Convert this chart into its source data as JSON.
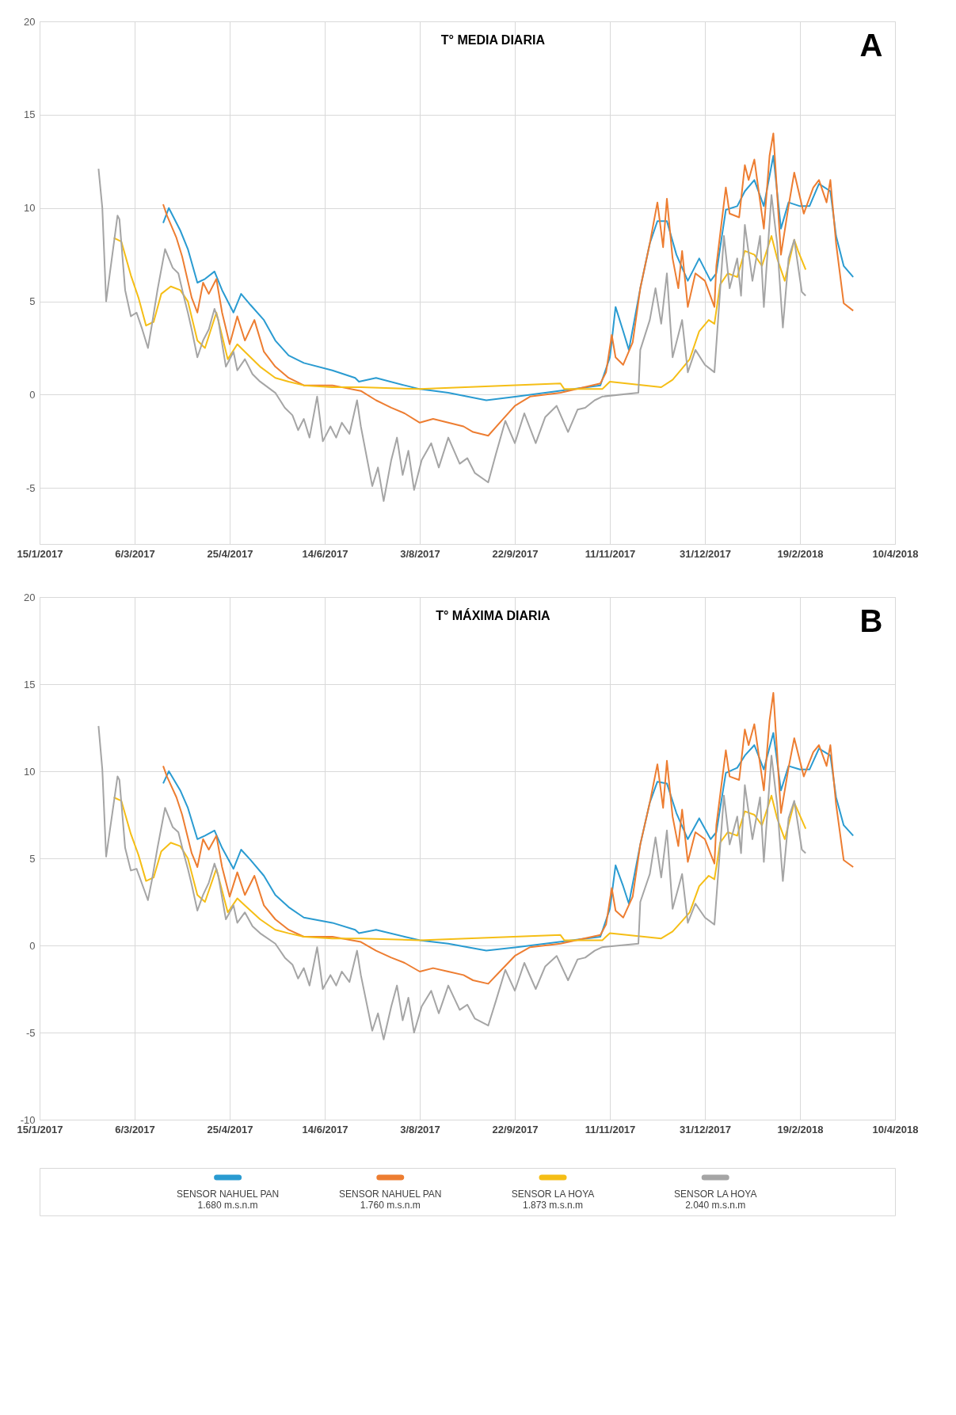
{
  "chart_data": [
    {
      "type": "line",
      "title": "T° MEDIA DIARIA",
      "annotations": [
        "A"
      ],
      "grid": true,
      "line_style": "solid",
      "xlim": [
        "2017-01-15",
        "2018-04-10"
      ],
      "xticks": [
        {
          "value": "2017-01-15",
          "label": "15/1/2017"
        },
        {
          "value": "2017-03-06",
          "label": "6/3/2017"
        },
        {
          "value": "2017-04-25",
          "label": "25/4/2017"
        },
        {
          "value": "2017-06-14",
          "label": "14/6/2017"
        },
        {
          "value": "2017-08-03",
          "label": "3/8/2017"
        },
        {
          "value": "2017-09-22",
          "label": "22/9/2017"
        },
        {
          "value": "2017-11-11",
          "label": "11/11/2017"
        },
        {
          "value": "2017-12-31",
          "label": "31/12/2017"
        },
        {
          "value": "2018-02-19",
          "label": "19/2/2018"
        },
        {
          "value": "2018-04-10",
          "label": "10/4/2018"
        }
      ],
      "ylim": [
        -8,
        20
      ],
      "yticks": [
        -5,
        0,
        5,
        10,
        15,
        20
      ],
      "series": [
        {
          "color": "#2a9bd1",
          "x": [
            "2017-03-21",
            "2017-03-24",
            "2017-03-30",
            "2017-04-03",
            "2017-04-08",
            "2017-04-12",
            "2017-04-17",
            "2017-04-21",
            "2017-04-27",
            "2017-05-01",
            "2017-05-06",
            "2017-05-13",
            "2017-05-19",
            "2017-05-26",
            "2017-06-03",
            "2017-06-18",
            "2017-06-30",
            "2017-07-02",
            "2017-07-11",
            "2017-07-26",
            "2017-08-03",
            "2017-08-18",
            "2017-09-07",
            "2017-09-23",
            "2017-10-08",
            "2017-11-06",
            "2017-11-11",
            "2017-11-14",
            "2017-11-18",
            "2017-11-21",
            "2017-11-27",
            "2017-12-02",
            "2017-12-06",
            "2017-12-11",
            "2017-12-16",
            "2017-12-22",
            "2017-12-28",
            "2018-01-03",
            "2018-01-06",
            "2018-01-11",
            "2018-01-17",
            "2018-01-21",
            "2018-01-26",
            "2018-01-31",
            "2018-02-05",
            "2018-02-09",
            "2018-02-13",
            "2018-02-19",
            "2018-02-24",
            "2018-03-01",
            "2018-03-07",
            "2018-03-10",
            "2018-03-14",
            "2018-03-19"
          ],
          "values": [
            9.2,
            10.0,
            8.8,
            7.8,
            6.0,
            6.2,
            6.6,
            5.6,
            4.4,
            5.4,
            4.8,
            4.0,
            2.9,
            2.1,
            1.7,
            1.3,
            0.9,
            0.7,
            0.9,
            0.5,
            0.3,
            0.1,
            -0.3,
            -0.1,
            0.1,
            0.5,
            2.0,
            4.7,
            3.4,
            2.4,
            5.7,
            8.1,
            9.3,
            9.3,
            7.5,
            6.1,
            7.3,
            6.1,
            6.5,
            9.9,
            10.1,
            10.9,
            11.5,
            10.1,
            12.8,
            8.9,
            10.3,
            10.1,
            10.1,
            11.3,
            10.9,
            8.5,
            6.9,
            6.3
          ]
        },
        {
          "color": "#ed7d31",
          "x": [
            "2017-03-21",
            "2017-03-23",
            "2017-03-28",
            "2017-03-31",
            "2017-04-05",
            "2017-04-08",
            "2017-04-11",
            "2017-04-14",
            "2017-04-18",
            "2017-04-21",
            "2017-04-25",
            "2017-04-29",
            "2017-05-03",
            "2017-05-08",
            "2017-05-13",
            "2017-05-19",
            "2017-05-26",
            "2017-06-03",
            "2017-06-18",
            "2017-07-03",
            "2017-07-11",
            "2017-07-19",
            "2017-07-26",
            "2017-08-03",
            "2017-08-10",
            "2017-08-18",
            "2017-08-26",
            "2017-08-31",
            "2017-09-08",
            "2017-09-15",
            "2017-09-22",
            "2017-09-30",
            "2017-10-16",
            "2017-11-06",
            "2017-11-09",
            "2017-11-12",
            "2017-11-14",
            "2017-11-18",
            "2017-11-23",
            "2017-11-27",
            "2017-12-02",
            "2017-12-06",
            "2017-12-09",
            "2017-12-11",
            "2017-12-14",
            "2017-12-17",
            "2017-12-19",
            "2017-12-22",
            "2017-12-26",
            "2017-12-31",
            "2018-01-05",
            "2018-01-06",
            "2018-01-11",
            "2018-01-13",
            "2018-01-18",
            "2018-01-21",
            "2018-01-23",
            "2018-01-26",
            "2018-01-31",
            "2018-02-03",
            "2018-02-05",
            "2018-02-09",
            "2018-02-13",
            "2018-02-16",
            "2018-02-21",
            "2018-02-26",
            "2018-03-01",
            "2018-03-05",
            "2018-03-07",
            "2018-03-10",
            "2018-03-14",
            "2018-03-19"
          ],
          "values": [
            10.2,
            9.6,
            8.4,
            7.4,
            5.2,
            4.4,
            6.0,
            5.4,
            6.2,
            4.4,
            2.7,
            4.2,
            2.9,
            4.0,
            2.3,
            1.5,
            0.9,
            0.5,
            0.5,
            0.2,
            -0.3,
            -0.7,
            -1.0,
            -1.5,
            -1.3,
            -1.5,
            -1.7,
            -2.0,
            -2.2,
            -1.4,
            -0.6,
            -0.1,
            0.1,
            0.6,
            1.2,
            3.2,
            2.0,
            1.6,
            2.8,
            5.7,
            8.1,
            10.3,
            7.9,
            10.5,
            7.3,
            5.7,
            7.7,
            4.7,
            6.5,
            6.1,
            4.7,
            6.9,
            11.1,
            9.7,
            9.5,
            12.3,
            11.5,
            12.6,
            8.9,
            12.8,
            14.0,
            7.5,
            10.1,
            11.9,
            9.7,
            11.1,
            11.5,
            10.3,
            11.5,
            8.1,
            4.9,
            4.5
          ]
        },
        {
          "color": "#f5be16",
          "x": [
            "2017-02-23",
            "2017-02-27",
            "2017-03-04",
            "2017-03-08",
            "2017-03-12",
            "2017-03-16",
            "2017-03-20",
            "2017-03-25",
            "2017-03-30",
            "2017-04-03",
            "2017-04-08",
            "2017-04-12",
            "2017-04-18",
            "2017-04-24",
            "2017-04-29",
            "2017-05-03",
            "2017-05-11",
            "2017-05-19",
            "2017-05-26",
            "2017-06-03",
            "2017-06-18",
            "2017-07-03",
            "2017-08-03",
            "2017-10-16",
            "2017-10-18",
            "2017-11-07",
            "2017-11-11",
            "2017-12-08",
            "2017-12-14",
            "2017-12-19",
            "2017-12-23",
            "2017-12-28",
            "2018-01-02",
            "2018-01-05",
            "2018-01-08",
            "2018-01-12",
            "2018-01-17",
            "2018-01-21",
            "2018-01-26",
            "2018-01-30",
            "2018-02-04",
            "2018-02-07",
            "2018-02-11",
            "2018-02-16",
            "2018-02-18",
            "2018-02-22"
          ],
          "values": [
            8.4,
            8.2,
            6.4,
            5.2,
            3.7,
            3.9,
            5.4,
            5.8,
            5.6,
            5.0,
            2.9,
            2.5,
            4.4,
            1.9,
            2.7,
            2.3,
            1.5,
            0.9,
            0.7,
            0.5,
            0.4,
            0.4,
            0.3,
            0.6,
            0.3,
            0.3,
            0.7,
            0.4,
            0.8,
            1.4,
            1.9,
            3.4,
            4.0,
            3.8,
            5.9,
            6.5,
            6.3,
            7.7,
            7.5,
            6.9,
            8.5,
            7.3,
            6.1,
            8.3,
            7.7,
            6.7
          ]
        },
        {
          "color": "#a5a5a5",
          "x": [
            "2017-02-15",
            "2017-02-17",
            "2017-02-19",
            "2017-02-25",
            "2017-02-26",
            "2017-03-01",
            "2017-03-04",
            "2017-03-07",
            "2017-03-10",
            "2017-03-13",
            "2017-03-15",
            "2017-03-18",
            "2017-03-22",
            "2017-03-26",
            "2017-03-29",
            "2017-04-01",
            "2017-04-03",
            "2017-04-05",
            "2017-04-08",
            "2017-04-11",
            "2017-04-14",
            "2017-04-17",
            "2017-04-19",
            "2017-04-23",
            "2017-04-27",
            "2017-04-29",
            "2017-05-03",
            "2017-05-07",
            "2017-05-11",
            "2017-05-19",
            "2017-05-24",
            "2017-05-28",
            "2017-05-31",
            "2017-06-03",
            "2017-06-06",
            "2017-06-10",
            "2017-06-13",
            "2017-06-17",
            "2017-06-20",
            "2017-06-23",
            "2017-06-27",
            "2017-07-01",
            "2017-07-03",
            "2017-07-09",
            "2017-07-12",
            "2017-07-15",
            "2017-07-19",
            "2017-07-22",
            "2017-07-25",
            "2017-07-28",
            "2017-07-31",
            "2017-08-04",
            "2017-08-09",
            "2017-08-13",
            "2017-08-18",
            "2017-08-24",
            "2017-08-28",
            "2017-09-01",
            "2017-09-08",
            "2017-09-12",
            "2017-09-17",
            "2017-09-22",
            "2017-09-27",
            "2017-10-03",
            "2017-10-08",
            "2017-10-14",
            "2017-10-20",
            "2017-10-25",
            "2017-10-29",
            "2017-11-03",
            "2017-11-07",
            "2017-11-26",
            "2017-11-27",
            "2017-12-02",
            "2017-12-05",
            "2017-12-08",
            "2017-12-11",
            "2017-12-14",
            "2017-12-19",
            "2017-12-22",
            "2017-12-26",
            "2017-12-31",
            "2018-01-05",
            "2018-01-10",
            "2018-01-13",
            "2018-01-17",
            "2018-01-19",
            "2018-01-21",
            "2018-01-25",
            "2018-01-29",
            "2018-01-31",
            "2018-02-04",
            "2018-02-07",
            "2018-02-10",
            "2018-02-13",
            "2018-02-16",
            "2018-02-20",
            "2018-02-22"
          ],
          "values": [
            12.1,
            10.0,
            5.0,
            9.6,
            9.4,
            5.6,
            4.2,
            4.4,
            3.5,
            2.5,
            3.7,
            5.6,
            7.8,
            6.8,
            6.5,
            5.2,
            4.4,
            3.5,
            2.0,
            2.9,
            3.5,
            4.6,
            4.0,
            1.5,
            2.3,
            1.3,
            1.9,
            1.1,
            0.7,
            0.1,
            -0.7,
            -1.1,
            -1.9,
            -1.3,
            -2.3,
            -0.1,
            -2.5,
            -1.7,
            -2.3,
            -1.5,
            -2.1,
            -0.3,
            -1.7,
            -4.9,
            -3.9,
            -5.7,
            -3.5,
            -2.3,
            -4.3,
            -3.0,
            -5.1,
            -3.5,
            -2.6,
            -3.9,
            -2.3,
            -3.7,
            -3.4,
            -4.2,
            -4.7,
            -3.2,
            -1.4,
            -2.6,
            -1.0,
            -2.6,
            -1.2,
            -0.6,
            -2.0,
            -0.8,
            -0.7,
            -0.3,
            -0.1,
            0.1,
            2.4,
            4.0,
            5.7,
            3.8,
            6.5,
            2.0,
            4.0,
            1.2,
            2.4,
            1.6,
            1.2,
            8.5,
            5.7,
            7.3,
            5.3,
            9.1,
            6.1,
            8.5,
            4.7,
            10.7,
            8.1,
            3.6,
            7.3,
            8.3,
            5.5,
            5.3
          ]
        }
      ]
    },
    {
      "type": "line",
      "title": "T° MÁXIMA DIARIA",
      "annotations": [
        "B"
      ],
      "legend": "bottom",
      "grid": true,
      "line_style": "solid",
      "xlim": [
        "2017-01-15",
        "2018-04-10"
      ],
      "xticks": [
        {
          "value": "2017-01-15",
          "label": "15/1/2017"
        },
        {
          "value": "2017-03-06",
          "label": "6/3/2017"
        },
        {
          "value": "2017-04-25",
          "label": "25/4/2017"
        },
        {
          "value": "2017-06-14",
          "label": "14/6/2017"
        },
        {
          "value": "2017-08-03",
          "label": "3/8/2017"
        },
        {
          "value": "2017-09-22",
          "label": "22/9/2017"
        },
        {
          "value": "2017-11-11",
          "label": "11/11/2017"
        },
        {
          "value": "2017-12-31",
          "label": "31/12/2017"
        },
        {
          "value": "2018-02-19",
          "label": "19/2/2018"
        },
        {
          "value": "2018-04-10",
          "label": "10/4/2018"
        }
      ],
      "ylim": [
        -10,
        20
      ],
      "yticks": [
        -10,
        -5,
        0,
        5,
        10,
        15,
        20
      ],
      "series": [
        {
          "name": "SENSOR NAHUEL PAN\n1.680 m.s.n.m",
          "color": "#2a9bd1",
          "x": [
            "2017-03-21",
            "2017-03-24",
            "2017-03-30",
            "2017-04-03",
            "2017-04-08",
            "2017-04-12",
            "2017-04-17",
            "2017-04-21",
            "2017-04-27",
            "2017-05-01",
            "2017-05-06",
            "2017-05-13",
            "2017-05-19",
            "2017-05-26",
            "2017-06-03",
            "2017-06-18",
            "2017-06-30",
            "2017-07-02",
            "2017-07-11",
            "2017-07-26",
            "2017-08-03",
            "2017-08-18",
            "2017-09-07",
            "2017-09-23",
            "2017-10-08",
            "2017-11-06",
            "2017-11-11",
            "2017-11-14",
            "2017-11-18",
            "2017-11-21",
            "2017-11-27",
            "2017-12-02",
            "2017-12-06",
            "2017-12-11",
            "2017-12-16",
            "2017-12-22",
            "2017-12-28",
            "2018-01-03",
            "2018-01-06",
            "2018-01-11",
            "2018-01-17",
            "2018-01-21",
            "2018-01-26",
            "2018-01-31",
            "2018-02-05",
            "2018-02-09",
            "2018-02-13",
            "2018-02-19",
            "2018-02-24",
            "2018-03-01",
            "2018-03-07",
            "2018-03-10",
            "2018-03-14",
            "2018-03-19"
          ],
          "values": [
            9.3,
            10.0,
            8.9,
            7.9,
            6.1,
            6.3,
            6.6,
            5.6,
            4.4,
            5.5,
            4.9,
            4.0,
            2.9,
            2.2,
            1.6,
            1.3,
            0.9,
            0.7,
            0.9,
            0.5,
            0.3,
            0.1,
            -0.3,
            -0.1,
            0.1,
            0.5,
            2.1,
            4.6,
            3.4,
            2.4,
            5.8,
            8.2,
            9.4,
            9.3,
            7.6,
            6.1,
            7.3,
            6.1,
            6.5,
            9.9,
            10.2,
            10.9,
            11.5,
            10.1,
            12.2,
            8.9,
            10.3,
            10.1,
            10.1,
            11.3,
            10.9,
            8.5,
            6.9,
            6.3
          ]
        },
        {
          "name": "SENSOR NAHUEL PAN\n1.760 m.s.n.m",
          "color": "#ed7d31",
          "x": [
            "2017-03-21",
            "2017-03-23",
            "2017-03-28",
            "2017-03-31",
            "2017-04-05",
            "2017-04-08",
            "2017-04-11",
            "2017-04-14",
            "2017-04-18",
            "2017-04-21",
            "2017-04-25",
            "2017-04-29",
            "2017-05-03",
            "2017-05-08",
            "2017-05-13",
            "2017-05-19",
            "2017-05-26",
            "2017-06-03",
            "2017-06-18",
            "2017-07-03",
            "2017-07-11",
            "2017-07-19",
            "2017-07-26",
            "2017-08-03",
            "2017-08-10",
            "2017-08-18",
            "2017-08-26",
            "2017-08-31",
            "2017-09-08",
            "2017-09-15",
            "2017-09-22",
            "2017-09-30",
            "2017-10-16",
            "2017-11-06",
            "2017-11-09",
            "2017-11-12",
            "2017-11-14",
            "2017-11-18",
            "2017-11-23",
            "2017-11-27",
            "2017-12-02",
            "2017-12-06",
            "2017-12-09",
            "2017-12-11",
            "2017-12-14",
            "2017-12-17",
            "2017-12-19",
            "2017-12-22",
            "2017-12-26",
            "2017-12-31",
            "2018-01-05",
            "2018-01-06",
            "2018-01-11",
            "2018-01-13",
            "2018-01-18",
            "2018-01-21",
            "2018-01-23",
            "2018-01-26",
            "2018-01-31",
            "2018-02-03",
            "2018-02-05",
            "2018-02-09",
            "2018-02-13",
            "2018-02-16",
            "2018-02-21",
            "2018-02-26",
            "2018-03-01",
            "2018-03-05",
            "2018-03-07",
            "2018-03-10",
            "2018-03-14",
            "2018-03-19"
          ],
          "values": [
            10.3,
            9.7,
            8.5,
            7.5,
            5.3,
            4.5,
            6.1,
            5.5,
            6.3,
            4.5,
            2.8,
            4.2,
            2.9,
            4.0,
            2.3,
            1.5,
            0.9,
            0.5,
            0.5,
            0.2,
            -0.3,
            -0.7,
            -1.0,
            -1.5,
            -1.3,
            -1.5,
            -1.7,
            -2.0,
            -2.2,
            -1.4,
            -0.6,
            -0.1,
            0.1,
            0.6,
            1.2,
            3.3,
            2.0,
            1.6,
            2.8,
            5.8,
            8.2,
            10.4,
            7.9,
            10.6,
            7.4,
            5.7,
            7.8,
            4.8,
            6.5,
            6.1,
            4.7,
            6.9,
            11.2,
            9.7,
            9.5,
            12.4,
            11.5,
            12.7,
            8.9,
            12.9,
            14.5,
            7.6,
            10.2,
            11.9,
            9.7,
            11.1,
            11.5,
            10.3,
            11.5,
            8.1,
            4.9,
            4.5
          ]
        },
        {
          "name": "SENSOR LA HOYA\n1.873 m.s.n.m",
          "color": "#f5be16",
          "x": [
            "2017-02-23",
            "2017-02-27",
            "2017-03-04",
            "2017-03-08",
            "2017-03-12",
            "2017-03-16",
            "2017-03-20",
            "2017-03-25",
            "2017-03-30",
            "2017-04-03",
            "2017-04-08",
            "2017-04-12",
            "2017-04-18",
            "2017-04-24",
            "2017-04-29",
            "2017-05-03",
            "2017-05-11",
            "2017-05-19",
            "2017-05-26",
            "2017-06-03",
            "2017-06-18",
            "2017-07-03",
            "2017-08-03",
            "2017-10-16",
            "2017-10-18",
            "2017-11-07",
            "2017-11-11",
            "2017-12-08",
            "2017-12-14",
            "2017-12-19",
            "2017-12-23",
            "2017-12-28",
            "2018-01-02",
            "2018-01-05",
            "2018-01-08",
            "2018-01-12",
            "2018-01-17",
            "2018-01-21",
            "2018-01-26",
            "2018-01-30",
            "2018-02-04",
            "2018-02-07",
            "2018-02-11",
            "2018-02-16",
            "2018-02-18",
            "2018-02-22"
          ],
          "values": [
            8.5,
            8.3,
            6.4,
            5.2,
            3.7,
            3.9,
            5.4,
            5.9,
            5.7,
            5.0,
            2.9,
            2.5,
            4.4,
            1.9,
            2.7,
            2.3,
            1.5,
            0.9,
            0.7,
            0.5,
            0.4,
            0.4,
            0.3,
            0.6,
            0.3,
            0.3,
            0.7,
            0.4,
            0.8,
            1.4,
            1.9,
            3.4,
            4.0,
            3.8,
            5.9,
            6.5,
            6.3,
            7.7,
            7.5,
            6.9,
            8.6,
            7.3,
            6.1,
            8.2,
            7.7,
            6.7
          ]
        },
        {
          "name": "SENSOR LA HOYA\n2.040 m.s.n.m",
          "color": "#a5a5a5",
          "x": [
            "2017-02-15",
            "2017-02-17",
            "2017-02-19",
            "2017-02-25",
            "2017-02-26",
            "2017-03-01",
            "2017-03-04",
            "2017-03-07",
            "2017-03-10",
            "2017-03-13",
            "2017-03-15",
            "2017-03-18",
            "2017-03-22",
            "2017-03-26",
            "2017-03-29",
            "2017-04-01",
            "2017-04-03",
            "2017-04-05",
            "2017-04-08",
            "2017-04-11",
            "2017-04-14",
            "2017-04-17",
            "2017-04-19",
            "2017-04-23",
            "2017-04-27",
            "2017-04-29",
            "2017-05-03",
            "2017-05-07",
            "2017-05-11",
            "2017-05-19",
            "2017-05-24",
            "2017-05-28",
            "2017-05-31",
            "2017-06-03",
            "2017-06-06",
            "2017-06-10",
            "2017-06-13",
            "2017-06-17",
            "2017-06-20",
            "2017-06-23",
            "2017-06-27",
            "2017-07-01",
            "2017-07-03",
            "2017-07-09",
            "2017-07-12",
            "2017-07-15",
            "2017-07-19",
            "2017-07-22",
            "2017-07-25",
            "2017-07-28",
            "2017-07-31",
            "2017-08-04",
            "2017-08-09",
            "2017-08-13",
            "2017-08-18",
            "2017-08-24",
            "2017-08-28",
            "2017-09-01",
            "2017-09-08",
            "2017-09-12",
            "2017-09-17",
            "2017-09-22",
            "2017-09-27",
            "2017-10-03",
            "2017-10-08",
            "2017-10-14",
            "2017-10-20",
            "2017-10-25",
            "2017-10-29",
            "2017-11-03",
            "2017-11-07",
            "2017-11-26",
            "2017-11-27",
            "2017-12-02",
            "2017-12-05",
            "2017-12-08",
            "2017-12-11",
            "2017-12-14",
            "2017-12-19",
            "2017-12-22",
            "2017-12-26",
            "2017-12-31",
            "2018-01-05",
            "2018-01-10",
            "2018-01-13",
            "2018-01-17",
            "2018-01-19",
            "2018-01-21",
            "2018-01-25",
            "2018-01-29",
            "2018-01-31",
            "2018-02-04",
            "2018-02-07",
            "2018-02-10",
            "2018-02-13",
            "2018-02-16",
            "2018-02-20",
            "2018-02-22"
          ],
          "values": [
            12.6,
            10.1,
            5.1,
            9.7,
            9.5,
            5.6,
            4.3,
            4.4,
            3.5,
            2.6,
            3.7,
            5.6,
            7.9,
            6.8,
            6.5,
            5.2,
            4.4,
            3.5,
            2.0,
            2.9,
            3.6,
            4.7,
            4.0,
            1.5,
            2.3,
            1.3,
            1.9,
            1.1,
            0.7,
            0.1,
            -0.7,
            -1.1,
            -1.9,
            -1.3,
            -2.3,
            -0.1,
            -2.5,
            -1.7,
            -2.3,
            -1.5,
            -2.1,
            -0.3,
            -1.7,
            -4.9,
            -3.9,
            -5.4,
            -3.5,
            -2.3,
            -4.3,
            -3.0,
            -5.0,
            -3.5,
            -2.6,
            -3.9,
            -2.3,
            -3.7,
            -3.4,
            -4.2,
            -4.6,
            -3.2,
            -1.4,
            -2.6,
            -1.0,
            -2.5,
            -1.2,
            -0.6,
            -2.0,
            -0.8,
            -0.7,
            -0.3,
            -0.1,
            0.1,
            2.5,
            4.1,
            6.2,
            3.9,
            6.6,
            2.1,
            4.1,
            1.3,
            2.4,
            1.6,
            1.2,
            8.6,
            5.8,
            7.4,
            5.3,
            9.2,
            6.1,
            8.5,
            4.8,
            10.9,
            8.1,
            3.7,
            7.3,
            8.3,
            5.5,
            5.3
          ]
        }
      ]
    }
  ]
}
